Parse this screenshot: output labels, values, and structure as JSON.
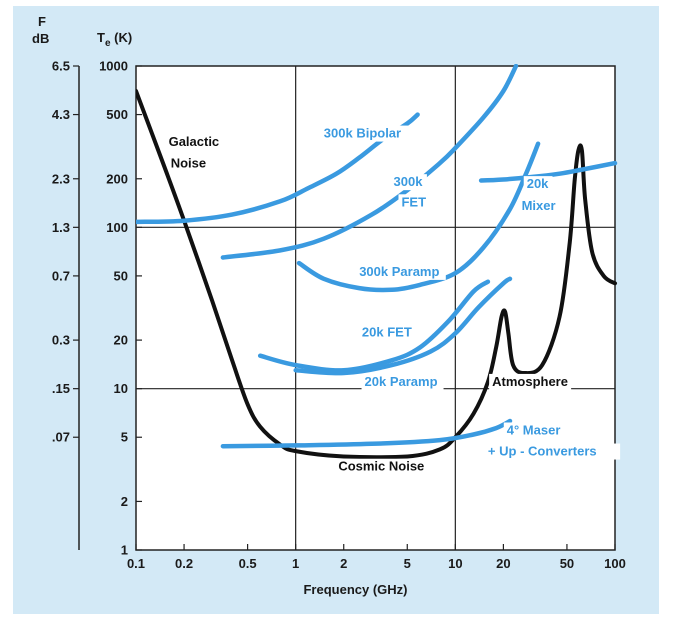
{
  "chart_data": {
    "type": "line",
    "xlabel": "Frequency (GHz)",
    "x_scale": "log",
    "xlim": [
      0.1,
      100
    ],
    "x_ticks": [
      {
        "value": 0.1,
        "label": "0.1"
      },
      {
        "value": 0.2,
        "label": "0.2"
      },
      {
        "value": 0.5,
        "label": "0.5"
      },
      {
        "value": 1,
        "label": "1"
      },
      {
        "value": 2,
        "label": "2"
      },
      {
        "value": 5,
        "label": "5"
      },
      {
        "value": 10,
        "label": "10"
      },
      {
        "value": 20,
        "label": "20"
      },
      {
        "value": 50,
        "label": "50"
      },
      {
        "value": 100,
        "label": "100"
      }
    ],
    "y_axis_te": {
      "label_main": "T",
      "label_sub": "e",
      "label_unit": " (K)",
      "scale": "log",
      "ylim": [
        1,
        1000
      ],
      "ticks": [
        {
          "value": 1,
          "label": "1"
        },
        {
          "value": 2,
          "label": "2"
        },
        {
          "value": 5,
          "label": "5"
        },
        {
          "value": 10,
          "label": "10"
        },
        {
          "value": 20,
          "label": "20"
        },
        {
          "value": 50,
          "label": "50"
        },
        {
          "value": 100,
          "label": "100"
        },
        {
          "value": 200,
          "label": "200"
        },
        {
          "value": 500,
          "label": "500"
        },
        {
          "value": 1000,
          "label": "1000"
        }
      ]
    },
    "y_axis_f": {
      "label_top": "F",
      "label_unit": "dB",
      "ticks": [
        {
          "te": 1000,
          "label": "6.5"
        },
        {
          "te": 500,
          "label": "4.3"
        },
        {
          "te": 200,
          "label": "2.3"
        },
        {
          "te": 100,
          "label": "1.3"
        },
        {
          "te": 50,
          "label": "0.7"
        },
        {
          "te": 20,
          "label": "0.3"
        },
        {
          "te": 10,
          "label": ".15"
        },
        {
          "te": 5,
          "label": ".07"
        }
      ]
    },
    "gridlines": {
      "x": [
        1,
        10
      ],
      "y": [
        10,
        100
      ]
    },
    "series": [
      {
        "name": "Galactic Noise / Cosmic Noise / Atmosphere",
        "color": "#111111",
        "points": [
          [
            0.1,
            700
          ],
          [
            0.15,
            240
          ],
          [
            0.2,
            110
          ],
          [
            0.3,
            35
          ],
          [
            0.4,
            15
          ],
          [
            0.5,
            8
          ],
          [
            0.6,
            5.8
          ],
          [
            0.8,
            4.5
          ],
          [
            1,
            4.1
          ],
          [
            2,
            3.8
          ],
          [
            5,
            3.8
          ],
          [
            8,
            4.2
          ],
          [
            10,
            5
          ],
          [
            13,
            7
          ],
          [
            16,
            11
          ],
          [
            18,
            18
          ],
          [
            19.5,
            28
          ],
          [
            20.5,
            30
          ],
          [
            21.5,
            22
          ],
          [
            23,
            14
          ],
          [
            27,
            12.5
          ],
          [
            35,
            14
          ],
          [
            45,
            28
          ],
          [
            52,
            80
          ],
          [
            56,
            200
          ],
          [
            59,
            300
          ],
          [
            62,
            300
          ],
          [
            65,
            150
          ],
          [
            72,
            70
          ],
          [
            85,
            50
          ],
          [
            100,
            45
          ]
        ]
      },
      {
        "name": "300k Bipolar",
        "color": "#3a9ae0",
        "points": [
          [
            0.1,
            108
          ],
          [
            0.2,
            110
          ],
          [
            0.4,
            120
          ],
          [
            0.8,
            145
          ],
          [
            1.2,
            175
          ],
          [
            1.8,
            215
          ],
          [
            2.5,
            270
          ],
          [
            3.5,
            350
          ],
          [
            5,
            440
          ],
          [
            5.8,
            500
          ]
        ]
      },
      {
        "name": "300k FET",
        "color": "#3a9ae0",
        "points": [
          [
            0.35,
            65
          ],
          [
            0.8,
            72
          ],
          [
            1.5,
            85
          ],
          [
            3,
            120
          ],
          [
            5,
            170
          ],
          [
            8,
            250
          ],
          [
            10,
            310
          ],
          [
            15,
            480
          ],
          [
            20,
            700
          ],
          [
            24,
            1000
          ]
        ]
      },
      {
        "name": "300k Paramp",
        "color": "#3a9ae0",
        "points": [
          [
            1.05,
            60
          ],
          [
            1.5,
            48
          ],
          [
            2.5,
            42
          ],
          [
            4,
            41
          ],
          [
            6,
            44
          ],
          [
            10,
            52
          ],
          [
            15,
            75
          ],
          [
            22,
            130
          ],
          [
            28,
            220
          ],
          [
            33,
            330
          ]
        ]
      },
      {
        "name": "20k FET",
        "color": "#3a9ae0",
        "points": [
          [
            0.6,
            16
          ],
          [
            1,
            14
          ],
          [
            2,
            13
          ],
          [
            4,
            15
          ],
          [
            6,
            18
          ],
          [
            9,
            26
          ],
          [
            13,
            40
          ],
          [
            16,
            46
          ]
        ]
      },
      {
        "name": "20k Paramp",
        "color": "#3a9ae0",
        "points": [
          [
            1,
            13
          ],
          [
            2,
            12.5
          ],
          [
            4,
            14
          ],
          [
            7,
            17
          ],
          [
            10,
            22
          ],
          [
            14,
            32
          ],
          [
            20,
            45
          ],
          [
            22,
            48
          ]
        ]
      },
      {
        "name": "20k Mixer",
        "color": "#3a9ae0",
        "points": [
          [
            14.5,
            195
          ],
          [
            20,
            198
          ],
          [
            30,
            205
          ],
          [
            45,
            215
          ],
          [
            65,
            230
          ],
          [
            100,
            250
          ]
        ]
      },
      {
        "name": "4° Maser + Up - Converters",
        "color": "#3a9ae0",
        "points": [
          [
            0.35,
            4.4
          ],
          [
            1,
            4.45
          ],
          [
            3,
            4.55
          ],
          [
            8,
            4.8
          ],
          [
            13,
            5.2
          ],
          [
            18,
            5.7
          ],
          [
            22,
            6.3
          ]
        ]
      }
    ],
    "annotations": [
      {
        "text": "Galactic",
        "x": 0.16,
        "y": 320,
        "color": "#111111"
      },
      {
        "text": "Noise",
        "x": 0.165,
        "y": 235,
        "color": "#111111"
      },
      {
        "text": "300k Bipolar",
        "x": 1.5,
        "y": 360,
        "color": "#3a9ae0"
      },
      {
        "text": "300k",
        "x": 4.1,
        "y": 180,
        "color": "#3a9ae0"
      },
      {
        "text": "FET",
        "x": 4.6,
        "y": 135,
        "color": "#3a9ae0"
      },
      {
        "text": "20k",
        "x": 28,
        "y": 175,
        "color": "#3a9ae0"
      },
      {
        "text": "Mixer",
        "x": 26,
        "y": 128,
        "color": "#3a9ae0"
      },
      {
        "text": "300k Paramp",
        "x": 2.5,
        "y": 50,
        "color": "#3a9ae0"
      },
      {
        "text": "20k FET",
        "x": 2.6,
        "y": 21,
        "color": "#3a9ae0"
      },
      {
        "text": "20k Paramp",
        "x": 2.7,
        "y": 10.4,
        "color": "#3a9ae0"
      },
      {
        "text": "Atmosphere",
        "x": 17,
        "y": 10.4,
        "color": "#111111"
      },
      {
        "text": "4° Maser",
        "x": 21,
        "y": 5.2,
        "color": "#3a9ae0"
      },
      {
        "text": "+ Up - Converters",
        "x": 16,
        "y": 3.85,
        "color": "#3a9ae0"
      },
      {
        "text": "Cosmic Noise",
        "x": 1.85,
        "y": 3.1,
        "color": "#111111"
      }
    ]
  }
}
